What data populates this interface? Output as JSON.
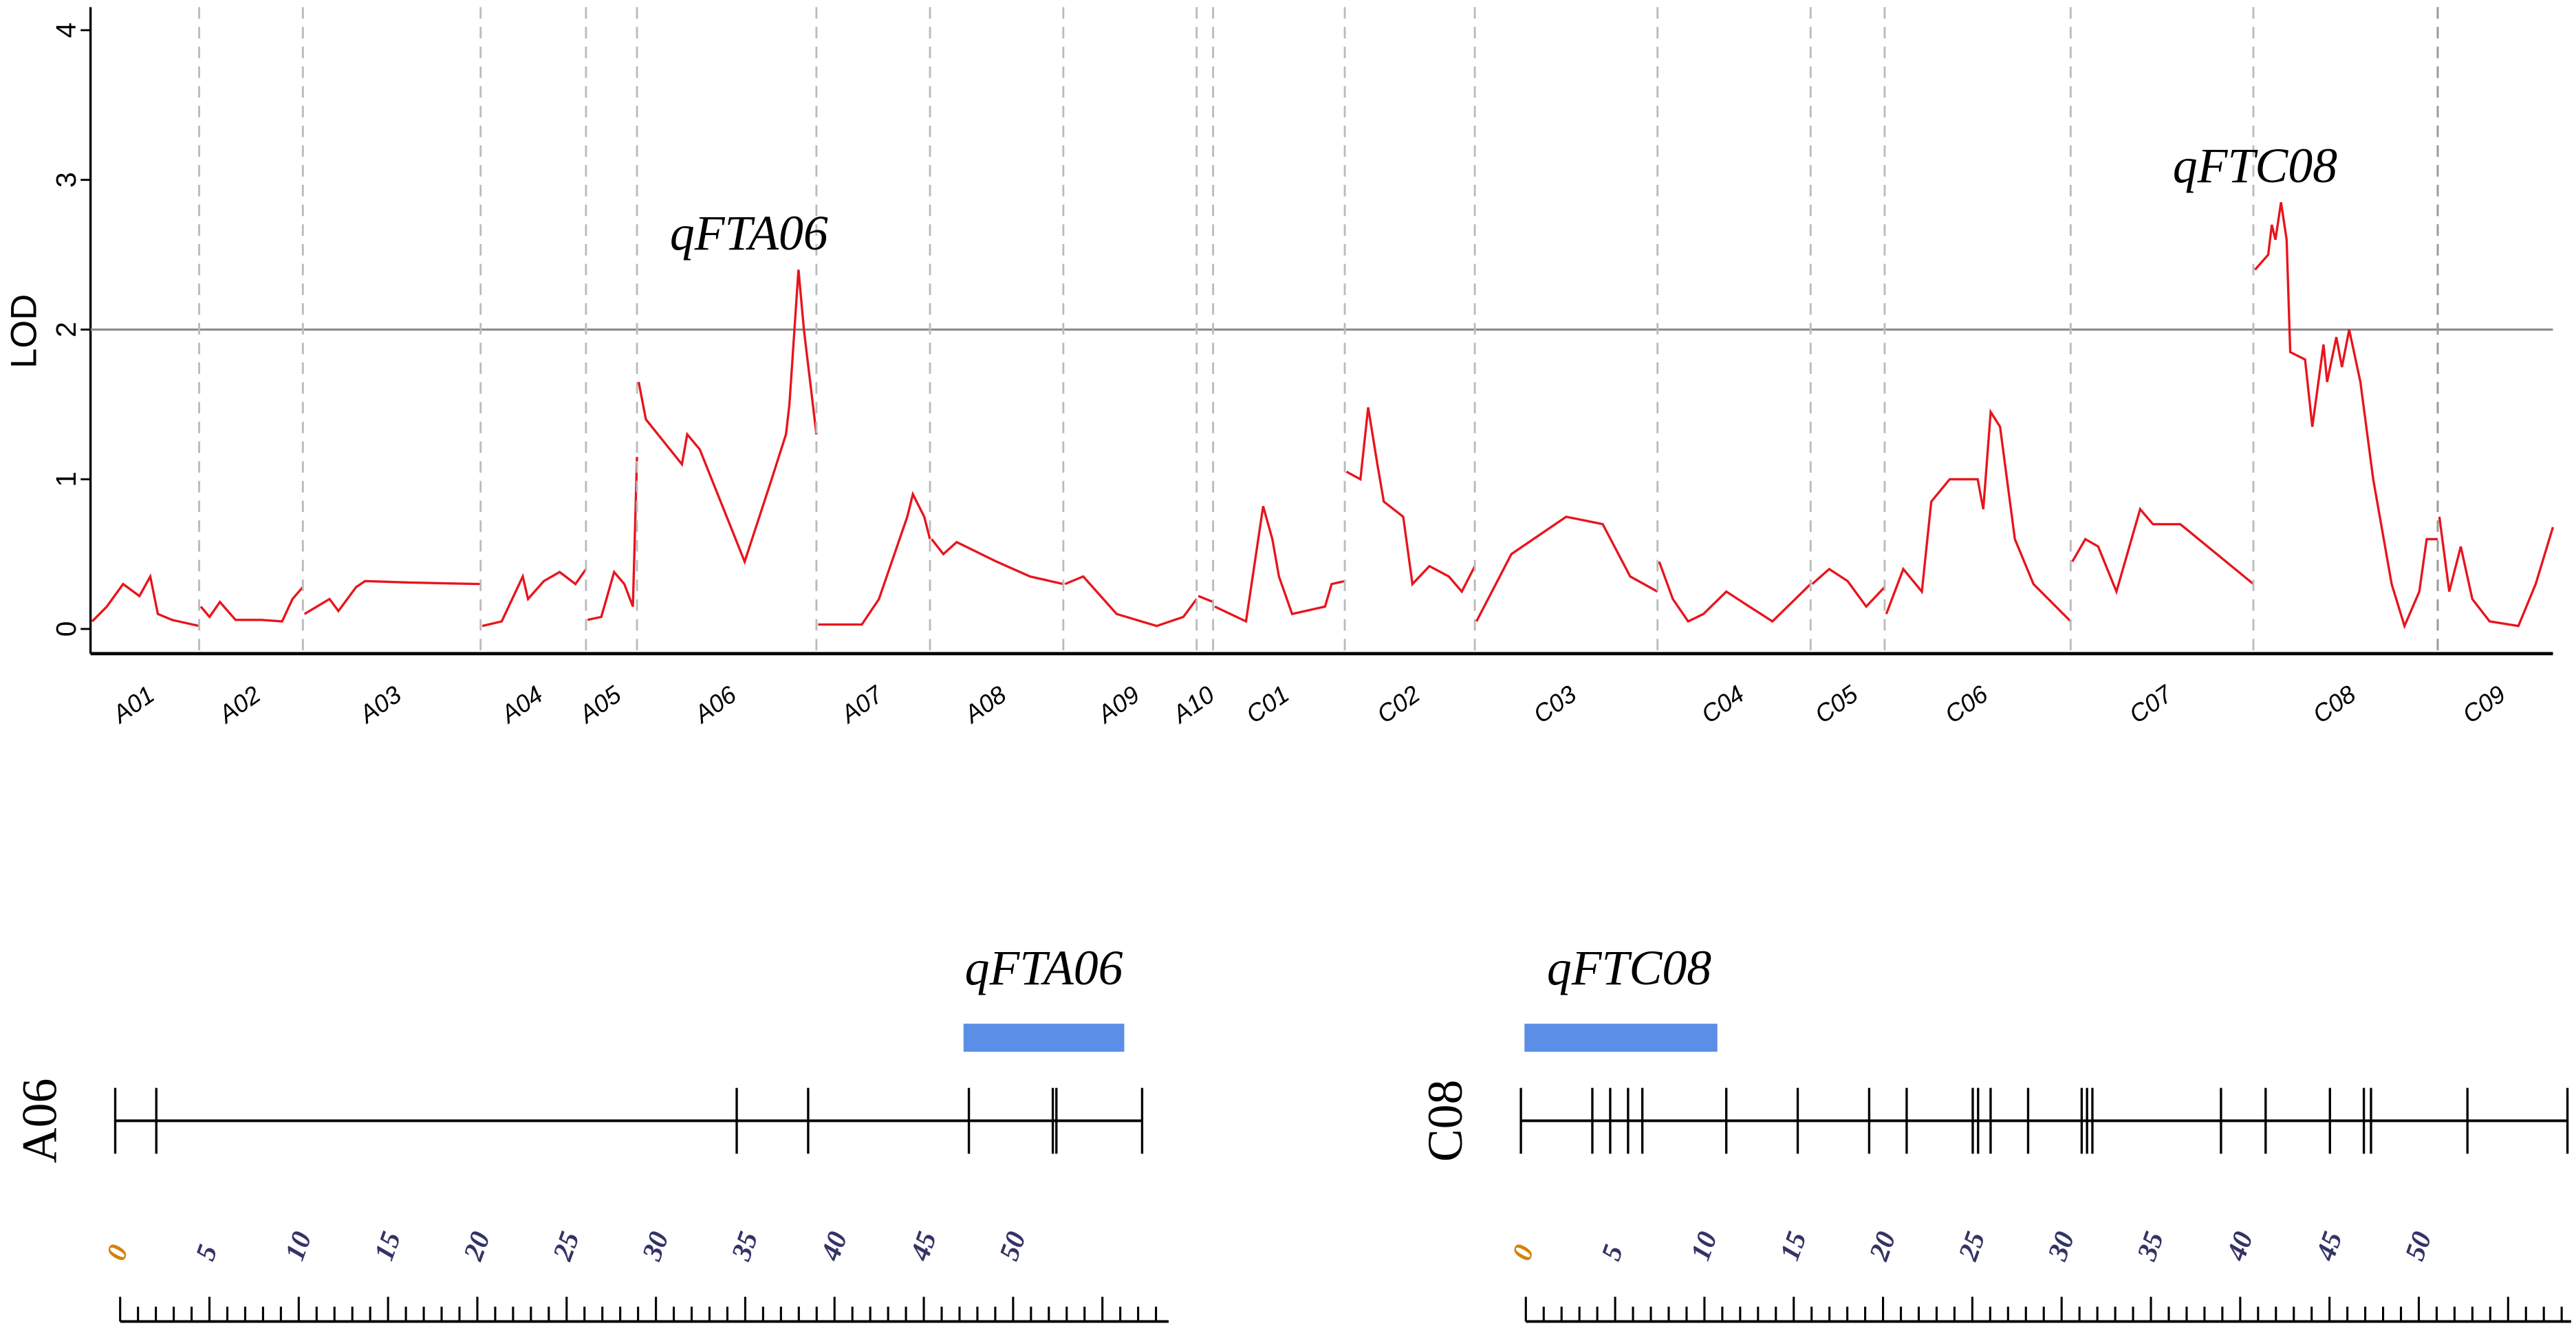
{
  "chart_data": [
    {
      "type": "line",
      "ylabel": "LOD",
      "ylim": [
        0,
        4
      ],
      "yticks": [
        0,
        1,
        2,
        3,
        4
      ],
      "threshold": 2,
      "grid": false,
      "colors": {
        "line": "#e8141c",
        "threshold": "#8c8c8c",
        "separator": "#bbbbbb"
      },
      "chromosomes": [
        {
          "name": "A01",
          "start": 55,
          "end": 121,
          "points": [
            [
              0,
              0.05
            ],
            [
              0.15,
              0.15
            ],
            [
              0.3,
              0.3
            ],
            [
              0.45,
              0.22
            ],
            [
              0.55,
              0.35
            ],
            [
              0.62,
              0.1
            ],
            [
              0.75,
              0.06
            ],
            [
              1,
              0.02
            ]
          ]
        },
        {
          "name": "A02",
          "start": 121,
          "end": 184,
          "points": [
            [
              0,
              0.15
            ],
            [
              0.1,
              0.08
            ],
            [
              0.2,
              0.18
            ],
            [
              0.35,
              0.06
            ],
            [
              0.6,
              0.06
            ],
            [
              0.8,
              0.05
            ],
            [
              0.9,
              0.2
            ],
            [
              1,
              0.28
            ]
          ]
        },
        {
          "name": "A03",
          "start": 184,
          "end": 292,
          "points": [
            [
              0,
              0.1
            ],
            [
              0.15,
              0.2
            ],
            [
              0.2,
              0.12
            ],
            [
              0.3,
              0.28
            ],
            [
              0.35,
              0.32
            ],
            [
              0.6,
              0.31
            ],
            [
              1,
              0.3
            ]
          ]
        },
        {
          "name": "A04",
          "start": 292,
          "end": 356,
          "points": [
            [
              0,
              0.02
            ],
            [
              0.2,
              0.05
            ],
            [
              0.4,
              0.35
            ],
            [
              0.45,
              0.2
            ],
            [
              0.6,
              0.32
            ],
            [
              0.75,
              0.38
            ],
            [
              0.9,
              0.3
            ],
            [
              1,
              0.4
            ]
          ]
        },
        {
          "name": "A05",
          "start": 356,
          "end": 387,
          "points": [
            [
              0,
              0.06
            ],
            [
              0.3,
              0.08
            ],
            [
              0.55,
              0.38
            ],
            [
              0.75,
              0.3
            ],
            [
              0.92,
              0.15
            ],
            [
              1,
              1.15
            ]
          ]
        },
        {
          "name": "A06",
          "start": 387,
          "end": 496,
          "points": [
            [
              0,
              1.65
            ],
            [
              0.05,
              1.4
            ],
            [
              0.25,
              1.1
            ],
            [
              0.28,
              1.3
            ],
            [
              0.35,
              1.2
            ],
            [
              0.5,
              0.75
            ],
            [
              0.6,
              0.45
            ],
            [
              0.75,
              1.0
            ],
            [
              0.83,
              1.3
            ],
            [
              0.85,
              1.5
            ],
            [
              0.9,
              2.4
            ],
            [
              0.93,
              2.0
            ],
            [
              1,
              1.3
            ]
          ]
        },
        {
          "name": "A07",
          "start": 496,
          "end": 565,
          "points": [
            [
              0,
              0.03
            ],
            [
              0.4,
              0.03
            ],
            [
              0.55,
              0.2
            ],
            [
              0.8,
              0.75
            ],
            [
              0.85,
              0.9
            ],
            [
              0.95,
              0.75
            ],
            [
              1,
              0.6
            ]
          ]
        },
        {
          "name": "A08",
          "start": 565,
          "end": 646,
          "points": [
            [
              0,
              0.6
            ],
            [
              0.1,
              0.5
            ],
            [
              0.2,
              0.58
            ],
            [
              0.5,
              0.45
            ],
            [
              0.75,
              0.35
            ],
            [
              1,
              0.3
            ]
          ]
        },
        {
          "name": "A09",
          "start": 646,
          "end": 727,
          "points": [
            [
              0,
              0.3
            ],
            [
              0.15,
              0.35
            ],
            [
              0.4,
              0.1
            ],
            [
              0.7,
              0.02
            ],
            [
              0.9,
              0.08
            ],
            [
              1,
              0.2
            ]
          ]
        },
        {
          "name": "A10",
          "start": 727,
          "end": 737,
          "points": [
            [
              0,
              0.22
            ],
            [
              1,
              0.18
            ]
          ]
        },
        {
          "name": "C01",
          "start": 737,
          "end": 817,
          "points": [
            [
              0,
              0.15
            ],
            [
              0.25,
              0.05
            ],
            [
              0.38,
              0.82
            ],
            [
              0.45,
              0.6
            ],
            [
              0.5,
              0.35
            ],
            [
              0.6,
              0.1
            ],
            [
              0.85,
              0.15
            ],
            [
              0.9,
              0.3
            ],
            [
              1,
              0.32
            ]
          ]
        },
        {
          "name": "C02",
          "start": 817,
          "end": 896,
          "points": [
            [
              0,
              1.05
            ],
            [
              0.12,
              1.0
            ],
            [
              0.18,
              1.48
            ],
            [
              0.25,
              1.1
            ],
            [
              0.3,
              0.85
            ],
            [
              0.45,
              0.75
            ],
            [
              0.52,
              0.3
            ],
            [
              0.65,
              0.42
            ],
            [
              0.8,
              0.35
            ],
            [
              0.9,
              0.25
            ],
            [
              1,
              0.42
            ]
          ]
        },
        {
          "name": "C03",
          "start": 896,
          "end": 1007,
          "points": [
            [
              0,
              0.05
            ],
            [
              0.2,
              0.5
            ],
            [
              0.5,
              0.75
            ],
            [
              0.7,
              0.7
            ],
            [
              0.85,
              0.35
            ],
            [
              1,
              0.25
            ]
          ]
        },
        {
          "name": "C04",
          "start": 1007,
          "end": 1100,
          "points": [
            [
              0,
              0.45
            ],
            [
              0.1,
              0.2
            ],
            [
              0.2,
              0.05
            ],
            [
              0.3,
              0.1
            ],
            [
              0.45,
              0.25
            ],
            [
              0.6,
              0.15
            ],
            [
              0.75,
              0.05
            ],
            [
              0.9,
              0.2
            ],
            [
              1,
              0.3
            ]
          ]
        },
        {
          "name": "C05",
          "start": 1100,
          "end": 1145,
          "points": [
            [
              0,
              0.3
            ],
            [
              0.25,
              0.4
            ],
            [
              0.5,
              0.32
            ],
            [
              0.75,
              0.15
            ],
            [
              1,
              0.28
            ]
          ]
        },
        {
          "name": "C06",
          "start": 1145,
          "end": 1258,
          "points": [
            [
              0,
              0.1
            ],
            [
              0.1,
              0.4
            ],
            [
              0.2,
              0.25
            ],
            [
              0.25,
              0.85
            ],
            [
              0.35,
              1.0
            ],
            [
              0.5,
              1.0
            ],
            [
              0.53,
              0.8
            ],
            [
              0.57,
              1.45
            ],
            [
              0.62,
              1.35
            ],
            [
              0.7,
              0.6
            ],
            [
              0.8,
              0.3
            ],
            [
              1,
              0.05
            ]
          ]
        },
        {
          "name": "C07",
          "start": 1258,
          "end": 1369,
          "points": [
            [
              0,
              0.45
            ],
            [
              0.08,
              0.6
            ],
            [
              0.15,
              0.55
            ],
            [
              0.25,
              0.25
            ],
            [
              0.38,
              0.8
            ],
            [
              0.45,
              0.7
            ],
            [
              0.6,
              0.7
            ],
            [
              0.8,
              0.5
            ],
            [
              1,
              0.3
            ]
          ]
        },
        {
          "name": "C08",
          "start": 1369,
          "end": 1481,
          "points": [
            [
              0,
              2.4
            ],
            [
              0.08,
              2.5
            ],
            [
              0.1,
              2.7
            ],
            [
              0.12,
              2.6
            ],
            [
              0.15,
              2.85
            ],
            [
              0.18,
              2.6
            ],
            [
              0.2,
              1.85
            ],
            [
              0.28,
              1.8
            ],
            [
              0.32,
              1.35
            ],
            [
              0.38,
              1.9
            ],
            [
              0.4,
              1.65
            ],
            [
              0.45,
              1.95
            ],
            [
              0.48,
              1.75
            ],
            [
              0.52,
              2.0
            ],
            [
              0.58,
              1.65
            ],
            [
              0.65,
              1.0
            ],
            [
              0.75,
              0.3
            ],
            [
              0.82,
              0.02
            ],
            [
              0.9,
              0.25
            ],
            [
              0.94,
              0.6
            ],
            [
              1,
              0.6
            ]
          ]
        },
        {
          "name": "C09",
          "start": 1481,
          "end": 1551,
          "points": [
            [
              0,
              0.75
            ],
            [
              0.1,
              0.25
            ],
            [
              0.2,
              0.55
            ],
            [
              0.3,
              0.2
            ],
            [
              0.45,
              0.05
            ],
            [
              0.7,
              0.02
            ],
            [
              0.85,
              0.3
            ],
            [
              1,
              0.68
            ]
          ]
        }
      ],
      "annotations": [
        {
          "text": "qFTA06",
          "x": 485,
          "y": 2.6
        },
        {
          "text": "qFTC08",
          "x": 1400,
          "y": 3.05
        }
      ]
    },
    {
      "type": "linkage-map",
      "colors": {
        "qtl_bar": "#5b8ee6",
        "tick_zero": "#d4820a",
        "tick_label": "#333366"
      },
      "maps": [
        {
          "chromosome": "A06",
          "qtl_label": "qFTA06",
          "qtl_interval_cM": [
            47.5,
            56.5
          ],
          "length_cM": 57.5,
          "markers_cM": [
            0,
            2.3,
            34.8,
            38.8,
            47.8,
            52.5,
            52.7,
            57.5
          ],
          "scale_labels": [
            "0",
            "5",
            "10",
            "15",
            "20",
            "25",
            "30",
            "35",
            "40",
            "45",
            "50"
          ]
        },
        {
          "chromosome": "C08",
          "qtl_label": "qFTC08",
          "qtl_interval_cM": [
            0.2,
            11
          ],
          "length_cM": 58.6,
          "markers_cM": [
            0,
            4,
            5,
            6,
            6.8,
            11.5,
            15.5,
            19.5,
            21.6,
            25.3,
            25.6,
            26.3,
            28.4,
            31.4,
            31.7,
            32.0,
            39.2,
            41.7,
            45.3,
            47.2,
            47.6,
            53,
            58.6
          ],
          "scale_labels": [
            "0",
            "5",
            "10",
            "15",
            "20",
            "25",
            "30",
            "35",
            "40",
            "45",
            "50"
          ]
        }
      ]
    }
  ]
}
